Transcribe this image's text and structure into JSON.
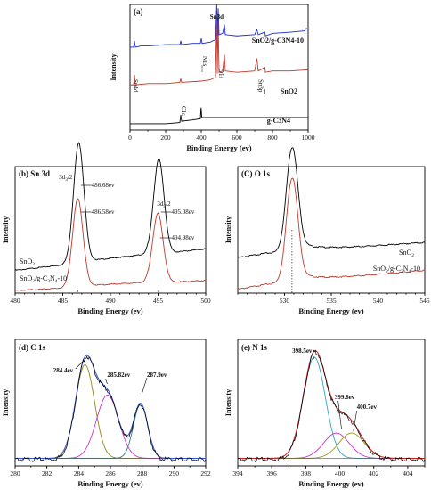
{
  "chart_data": [
    {
      "type": "line",
      "panel": "(a)",
      "xlabel": "Binding Energy (ev)",
      "ylabel": "Intensity",
      "xlim": [
        0,
        1000
      ],
      "xticks": [
        0,
        200,
        400,
        600,
        800,
        1000
      ],
      "series": [
        {
          "name": "SnO2/g-C3N4-10",
          "color": "#1a2bd8",
          "x": [
            0,
            20,
            25,
            30,
            60,
            100,
            200,
            280,
            285,
            290,
            350,
            395,
            400,
            405,
            450,
            480,
            487,
            490,
            495,
            500,
            520,
            530,
            535,
            600,
            700,
            712,
            720,
            757,
            760,
            800,
            900,
            980,
            990,
            1000
          ],
          "y": [
            0.66,
            0.66,
            0.71,
            0.66,
            0.67,
            0.67,
            0.68,
            0.68,
            0.71,
            0.68,
            0.69,
            0.69,
            0.73,
            0.69,
            0.7,
            0.72,
            1.0,
            0.75,
            0.97,
            0.76,
            0.77,
            0.84,
            0.76,
            0.75,
            0.76,
            0.8,
            0.76,
            0.78,
            0.75,
            0.77,
            0.78,
            0.79,
            0.81,
            0.8
          ]
        },
        {
          "name": "SnO2",
          "color": "#c0392b",
          "x": [
            0,
            20,
            25,
            30,
            100,
            200,
            280,
            285,
            290,
            400,
            450,
            480,
            487,
            490,
            495,
            500,
            520,
            530,
            535,
            600,
            700,
            712,
            720,
            757,
            760,
            800,
            900,
            1000
          ],
          "y": [
            0.36,
            0.36,
            0.44,
            0.36,
            0.37,
            0.37,
            0.38,
            0.41,
            0.38,
            0.39,
            0.4,
            0.42,
            0.92,
            0.45,
            0.85,
            0.46,
            0.47,
            0.6,
            0.47,
            0.46,
            0.47,
            0.57,
            0.47,
            0.5,
            0.46,
            0.47,
            0.47,
            0.48
          ]
        },
        {
          "name": "g-C3N4",
          "color": "#000000",
          "x": [
            0,
            100,
            200,
            280,
            285,
            290,
            350,
            395,
            399,
            403,
            410,
            450,
            500,
            600,
            700,
            800,
            900,
            1000
          ],
          "y": [
            0.05,
            0.05,
            0.05,
            0.06,
            0.12,
            0.07,
            0.08,
            0.09,
            0.18,
            0.1,
            0.1,
            0.1,
            0.1,
            0.1,
            0.1,
            0.1,
            0.1,
            0.1
          ]
        }
      ],
      "annotations": [
        "Sn3d",
        "N1s",
        "O1s",
        "Sn3p",
        "Sn4d",
        "C1s"
      ],
      "labels": [
        "SnO2/g-C3N4-10",
        "SnO2",
        "g-C3N4"
      ]
    },
    {
      "type": "line",
      "panel": "(b) Sn 3d",
      "xlabel": "Binding Energy (ev)",
      "ylabel": "Intensity",
      "xlim": [
        480,
        500
      ],
      "xticks": [
        480,
        485,
        490,
        495,
        500
      ],
      "series": [
        {
          "name": "SnO2",
          "color": "#000000",
          "peaks": [
            {
              "center": 486.68,
              "height": 0.95,
              "width": 0.55
            },
            {
              "center": 495.08,
              "height": 0.75,
              "width": 0.55
            }
          ],
          "baseline_start": 0.18,
          "baseline_end": 0.35
        },
        {
          "name": "SnO2/g-C3N4-10",
          "color": "#c0392b",
          "peaks": [
            {
              "center": 486.58,
              "height": 0.7,
              "width": 0.55
            },
            {
              "center": 494.98,
              "height": 0.55,
              "width": 0.55
            }
          ],
          "baseline_start": 0.02,
          "baseline_end": 0.1
        }
      ],
      "annotations": [
        "3d3/2",
        "486.68ev",
        "486.58ev",
        "3d5/2",
        "495.08ev",
        "494.98ev"
      ],
      "labels": [
        "SnO2",
        "SnO2/g-C3N4-10"
      ]
    },
    {
      "type": "line",
      "panel": "(C) O 1s",
      "xlabel": "Binding Energy (ev)",
      "ylabel": "Intensity",
      "xlim": [
        525,
        545
      ],
      "xticks": [
        530,
        535,
        540,
        545
      ],
      "series": [
        {
          "name": "SnO2",
          "color": "#000000",
          "peaks": [
            {
              "center": 530.8,
              "height": 0.82,
              "width": 0.6
            }
          ],
          "baseline_start": 0.3,
          "baseline_end": 0.4
        },
        {
          "name": "SnO2/g-C3N4-10",
          "color": "#c0392b",
          "peaks": [
            {
              "center": 530.8,
              "height": 0.82,
              "width": 0.6
            }
          ],
          "baseline_start": 0.05,
          "baseline_end": 0.18
        }
      ],
      "labels": [
        "SnO2",
        "SnO2/g-C3N4-10"
      ]
    },
    {
      "type": "line",
      "panel": "(d) C 1s",
      "xlabel": "Binding Energy (ev)",
      "ylabel": "Intensity",
      "xlim": [
        280,
        292
      ],
      "xticks": [
        280,
        282,
        284,
        286,
        288,
        290,
        292
      ],
      "components": [
        {
          "center": 284.4,
          "height": 0.74,
          "width": 0.6,
          "color": "#8a8a1a"
        },
        {
          "center": 285.82,
          "height": 0.5,
          "width": 0.7,
          "color": "#cc33cc"
        },
        {
          "center": 287.9,
          "height": 0.43,
          "width": 0.45,
          "color": "#2d7a7a"
        }
      ],
      "baseline": 0.06,
      "fit_color": "#3355dd",
      "raw_color": "#000000",
      "annotations": [
        "284.4ev",
        "285.82ev",
        "287.9ev"
      ]
    },
    {
      "type": "line",
      "panel": "(e) N 1s",
      "xlabel": "Binding Energy (ev)",
      "ylabel": "Intensity",
      "xlim": [
        394,
        405
      ],
      "xticks": [
        394,
        396,
        398,
        400,
        402,
        404
      ],
      "components": [
        {
          "center": 398.5,
          "height": 0.8,
          "width": 0.65,
          "color": "#2aa6c8"
        },
        {
          "center": 399.8,
          "height": 0.2,
          "width": 0.75,
          "color": "#cc33cc"
        },
        {
          "center": 400.7,
          "height": 0.2,
          "width": 0.75,
          "color": "#9a9a1a"
        }
      ],
      "baseline": 0.06,
      "fit_color": "#cc2222",
      "raw_color": "#000000",
      "annotations": [
        "398.5ev",
        "399.8ev",
        "400.7ev"
      ]
    }
  ]
}
